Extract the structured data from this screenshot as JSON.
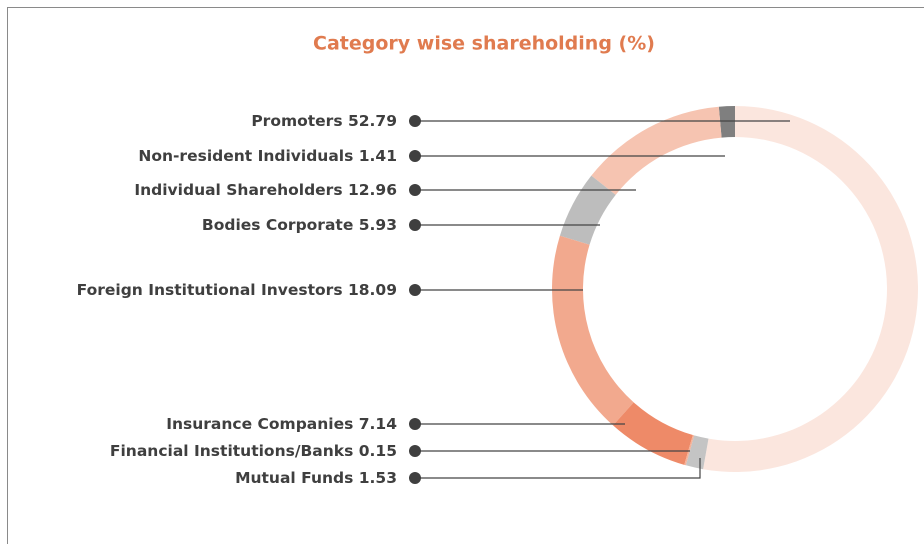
{
  "chart_data": {
    "type": "donut",
    "title": "Category wise shareholding (%)",
    "categories": [
      "Promoters",
      "Non-resident Individuals",
      "Individual Shareholders",
      "Bodies Corporate",
      "Foreign Institutional Investors",
      "Insurance Companies",
      "Financial Institutions/Banks",
      "Mutual Funds"
    ],
    "values": [
      52.79,
      1.41,
      12.96,
      5.93,
      18.09,
      7.14,
      0.15,
      1.53
    ],
    "colors": [
      "#fbe6de",
      "#7f7f7f",
      "#f6c4b1",
      "#bdbdbd",
      "#f2a98e",
      "#ee8a68",
      "#f4b39a",
      "#c4c4c4"
    ]
  }
}
